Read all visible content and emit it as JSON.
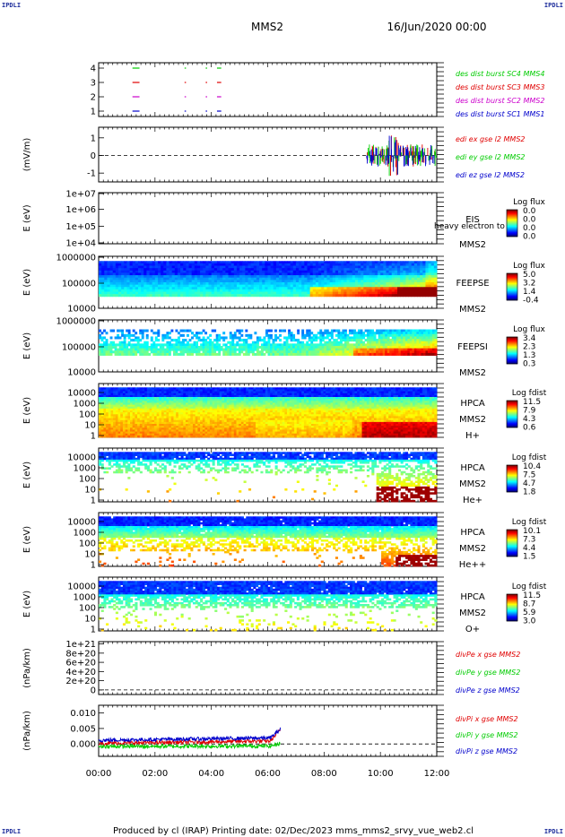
{
  "corners": [
    "IPDLI",
    "IPDLI",
    "IPDLI",
    "IPDLI"
  ],
  "header": {
    "mission": "MMS2",
    "datetime": "16/Jun/2020 00:00"
  },
  "footer": "Produced by cl (IRAP)   Printing date: 02/Dec/2023   mms_mms2_srvy_vue_web2.cl",
  "colors": {
    "red": "#e00000",
    "green": "#00cc00",
    "blue": "#0000cc",
    "magenta": "#cc00cc",
    "axis": "#000000"
  },
  "chart_data": [
    {
      "type": "scatter",
      "id": "burst",
      "yticks": [
        "1",
        "2",
        "3",
        "4"
      ],
      "ylim": [
        0.7,
        4.3
      ],
      "xlim": [
        0,
        12
      ],
      "series": [
        {
          "name": "des dist burst SC1 MMS1",
          "color": "#0000cc",
          "y": 1,
          "segments": [
            [
              1.2,
              1.45
            ],
            [
              3.05,
              3.1
            ],
            [
              3.8,
              3.85
            ],
            [
              4.2,
              4.35
            ]
          ]
        },
        {
          "name": "des dist burst SC2 MMS2",
          "color": "#cc00cc",
          "y": 2,
          "segments": [
            [
              1.2,
              1.45
            ],
            [
              3.05,
              3.1
            ],
            [
              3.8,
              3.85
            ],
            [
              4.2,
              4.35
            ]
          ]
        },
        {
          "name": "des dist burst SC3 MMS3",
          "color": "#e00000",
          "y": 3,
          "segments": [
            [
              1.2,
              1.45
            ],
            [
              3.05,
              3.1
            ],
            [
              3.8,
              3.85
            ],
            [
              4.2,
              4.35
            ]
          ]
        },
        {
          "name": "des dist burst SC4 MMS4",
          "color": "#00cc00",
          "y": 4,
          "segments": [
            [
              1.2,
              1.45
            ],
            [
              3.05,
              3.1
            ],
            [
              3.8,
              3.85
            ],
            [
              4.2,
              4.35
            ]
          ]
        }
      ]
    },
    {
      "type": "line",
      "id": "edi",
      "ylabel": "(mV/m)",
      "yticks": [
        "-1",
        "0",
        "1"
      ],
      "ylim": [
        -1.5,
        1.6
      ],
      "xlim": [
        0,
        12
      ],
      "series": [
        {
          "name": "edi ex gse l2 MMS2",
          "color": "#e00000"
        },
        {
          "name": "edi ey gse l2 MMS2",
          "color": "#00cc00"
        },
        {
          "name": "edi ez gse l2 MMS2",
          "color": "#0000cc"
        }
      ],
      "activity_window": [
        9.5,
        12.0
      ]
    },
    {
      "type": "heatmap",
      "id": "eis",
      "ylabel": "E (eV)",
      "yticks": [
        "1e+04",
        "1e+05",
        "1e+06",
        "1e+07"
      ],
      "instrument": [
        "EIS",
        "MMS2"
      ],
      "overlay_text": "heavy electron to",
      "cbar_title": "Log flux",
      "cbar_ticks": [
        "0.0",
        "0.0",
        "0.0",
        "0.0"
      ],
      "empty": true
    },
    {
      "type": "heatmap",
      "id": "feepse",
      "ylabel": "E (eV)",
      "yticks": [
        "10000",
        "100000",
        "1000000"
      ],
      "instrument": [
        "FEEPSE",
        "MMS2"
      ],
      "cbar_title": "Log flux",
      "cbar_ticks": [
        "5.0",
        "3.2",
        "1.4",
        "-0.4"
      ]
    },
    {
      "type": "heatmap",
      "id": "feepsi",
      "ylabel": "E (eV)",
      "yticks": [
        "10000",
        "100000",
        "1000000"
      ],
      "instrument": [
        "FEEPSI",
        "MMS2"
      ],
      "cbar_title": "Log flux",
      "cbar_ticks": [
        "3.4",
        "2.3",
        "1.3",
        "0.3"
      ]
    },
    {
      "type": "heatmap",
      "id": "hpca_h",
      "ylabel": "E (eV)",
      "yticks": [
        "1",
        "10",
        "100",
        "1000",
        "10000"
      ],
      "instrument": [
        "HPCA",
        "MMS2",
        "H+"
      ],
      "cbar_title": "Log fdist",
      "cbar_ticks": [
        "11.5",
        "7.9",
        "4.3",
        "0.6"
      ]
    },
    {
      "type": "heatmap",
      "id": "hpca_he",
      "ylabel": "E (eV)",
      "yticks": [
        "1",
        "10",
        "100",
        "1000",
        "10000"
      ],
      "instrument": [
        "HPCA",
        "MMS2",
        "He+"
      ],
      "cbar_title": "Log fdist",
      "cbar_ticks": [
        "10.4",
        "7.5",
        "4.7",
        "1.8"
      ]
    },
    {
      "type": "heatmap",
      "id": "hpca_hepp",
      "ylabel": "E (eV)",
      "yticks": [
        "1",
        "10",
        "100",
        "1000",
        "10000"
      ],
      "instrument": [
        "HPCA",
        "MMS2",
        "He++"
      ],
      "cbar_title": "Log fdist",
      "cbar_ticks": [
        "10.1",
        "7.3",
        "4.4",
        "1.5"
      ]
    },
    {
      "type": "heatmap",
      "id": "hpca_o",
      "ylabel": "E (eV)",
      "yticks": [
        "1",
        "10",
        "100",
        "1000",
        "10000"
      ],
      "instrument": [
        "HPCA",
        "MMS2",
        "O+"
      ],
      "cbar_title": "Log fdist",
      "cbar_ticks": [
        "11.5",
        "8.7",
        "5.9",
        "3.0"
      ]
    },
    {
      "type": "line",
      "id": "divpe",
      "ylabel": "(nPa/km)",
      "yticks": [
        "0",
        "2e+20",
        "4e+20",
        "6e+20",
        "8e+20",
        "1e+21"
      ],
      "ylim": [
        -0.1,
        1.05
      ],
      "xlim": [
        0,
        12
      ],
      "series": [
        {
          "name": "divPe x gse MMS2",
          "color": "#e00000"
        },
        {
          "name": "divPe y gse MMS2",
          "color": "#00cc00"
        },
        {
          "name": "divPe z gse MMS2",
          "color": "#0000cc"
        }
      ]
    },
    {
      "type": "line",
      "id": "divpi",
      "ylabel": "(nPa/km)",
      "yticks": [
        "0.000",
        "0.005",
        "0.010"
      ],
      "ylim": [
        -0.004,
        0.0125
      ],
      "xlim": [
        0,
        12
      ],
      "data_window": [
        0,
        6.45
      ],
      "series": [
        {
          "name": "divPi x gse MMS2",
          "color": "#e00000"
        },
        {
          "name": "divPi y gse MMS2",
          "color": "#00cc00"
        },
        {
          "name": "divPi z gse MMS2",
          "color": "#0000cc"
        }
      ]
    }
  ],
  "xaxis": {
    "ticks": [
      "00:00",
      "02:00",
      "04:00",
      "06:00",
      "08:00",
      "10:00",
      "12:00"
    ],
    "xlim": [
      0,
      12
    ]
  }
}
